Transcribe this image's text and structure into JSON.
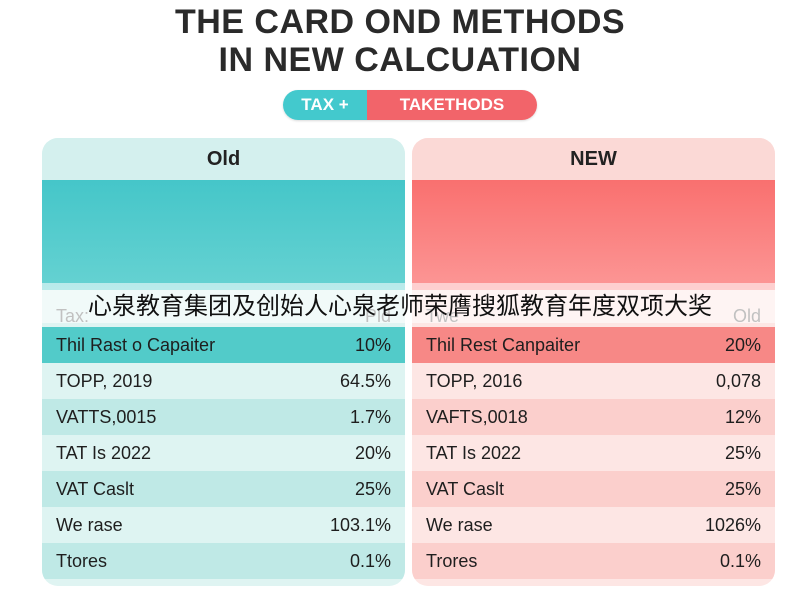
{
  "title": {
    "line1": "THE CARD OND METHODS",
    "line2": "IN NEW CALCUATION"
  },
  "pill": {
    "left": "TAX +",
    "right": "TAKETHODS"
  },
  "colors": {
    "teal": "#45c6c9",
    "coral": "#f9706f"
  },
  "panels": {
    "old": {
      "header": "Old",
      "col_left": "Tax:",
      "col_right": "Pld",
      "rows": [
        {
          "label": "Thil Rast o Capaiter",
          "value": "10%"
        },
        {
          "label": "TOPP, 2019",
          "value": "64.5%"
        },
        {
          "label": "VATTS,0015",
          "value": "1.7%"
        },
        {
          "label": "TAT Is 2022",
          "value": "20%"
        },
        {
          "label": "VAT Caslt",
          "value": "25%"
        },
        {
          "label": "We rase",
          "value": "103.1%"
        },
        {
          "label": "Ttores",
          "value": "0.1%"
        }
      ]
    },
    "new": {
      "header": "NEW",
      "col_left": "Twe",
      "col_right": "Old",
      "rows": [
        {
          "label": "Thil Rest Canpaiter",
          "value": "20%"
        },
        {
          "label": "TOPP, 2016",
          "value": "0,078"
        },
        {
          "label": "VAFTS,0018",
          "value": "12%"
        },
        {
          "label": "TAT Is 2022",
          "value": "25%"
        },
        {
          "label": "VAT Caslt",
          "value": "25%"
        },
        {
          "label": "We rase",
          "value": "1026%"
        },
        {
          "label": "Trores",
          "value": "0.1%"
        }
      ]
    }
  },
  "overlay_caption": "心泉教育集团及创始人心泉老师荣膺搜狐教育年度双项大奖"
}
